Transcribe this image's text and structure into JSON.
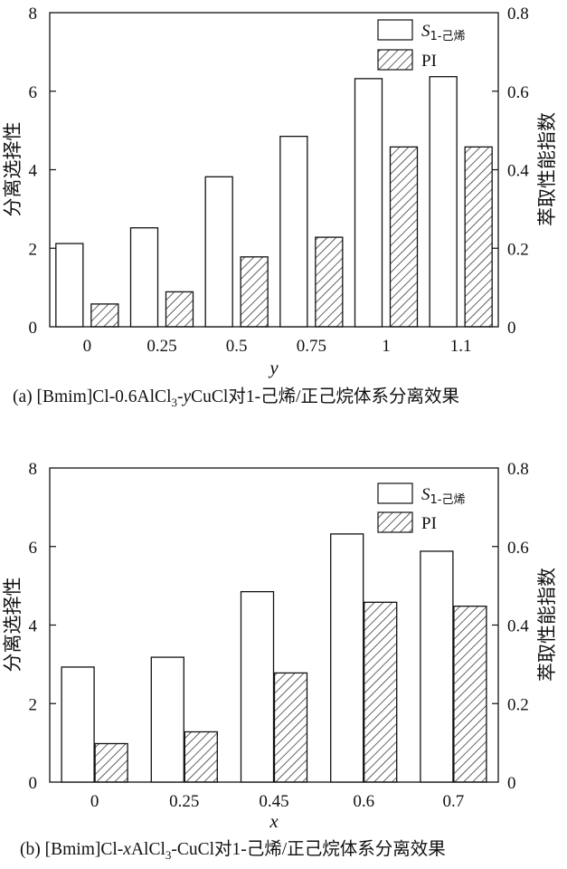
{
  "chart_data": [
    {
      "type": "bar",
      "panel": "a",
      "categories": [
        "0",
        "0.25",
        "0.5",
        "0.75",
        "1",
        "1.1"
      ],
      "series": [
        {
          "name": "S1-己烯",
          "axis": "left",
          "values": [
            2.12,
            2.52,
            3.82,
            4.85,
            6.32,
            6.37
          ]
        },
        {
          "name": "PI",
          "axis": "right",
          "values": [
            0.058,
            0.089,
            0.178,
            0.228,
            0.458,
            0.458
          ]
        }
      ],
      "xlabel": "y",
      "ylabel": "分离选择性",
      "y2label": "萃取性能指数",
      "ylim": [
        0,
        8
      ],
      "y2lim": [
        0,
        0.8
      ],
      "yticks": [
        "0",
        "2",
        "4",
        "6",
        "8"
      ],
      "y2ticks": [
        "0",
        "0.2",
        "0.4",
        "0.6",
        "0.8"
      ],
      "legend": {
        "s_main": "S",
        "s_sub": "1-己烯",
        "pi": "PI",
        "placement": "top-right"
      },
      "caption": {
        "pre": "(a) [Bmim]Cl-0.6AlCl",
        "sub": "3",
        "mid_a": "-",
        "mid_var": "y",
        "post": "CuCl对1-己烯/正己烷体系分离效果"
      }
    },
    {
      "type": "bar",
      "panel": "b",
      "categories": [
        "0",
        "0.25",
        "0.45",
        "0.6",
        "0.7"
      ],
      "series": [
        {
          "name": "S1-己烯",
          "axis": "left",
          "values": [
            2.93,
            3.18,
            4.85,
            6.32,
            5.88
          ]
        },
        {
          "name": "PI",
          "axis": "right",
          "values": [
            0.098,
            0.128,
            0.278,
            0.458,
            0.448
          ]
        }
      ],
      "xlabel": "x",
      "ylabel": "分离选择性",
      "y2label": "萃取性能指数",
      "ylim": [
        0,
        8
      ],
      "y2lim": [
        0,
        0.8
      ],
      "yticks": [
        "0",
        "2",
        "4",
        "6",
        "8"
      ],
      "y2ticks": [
        "0",
        "0.2",
        "0.4",
        "0.6",
        "0.8"
      ],
      "legend": {
        "s_main": "S",
        "s_sub": "1-己烯",
        "pi": "PI",
        "placement": "top-right"
      },
      "caption": {
        "pre": "(b) [Bmim]Cl-",
        "pre_var": "x",
        "pre2": "AlCl",
        "sub": "3",
        "post": "-CuCl对1-己烯/正己烷体系分离效果"
      }
    }
  ]
}
